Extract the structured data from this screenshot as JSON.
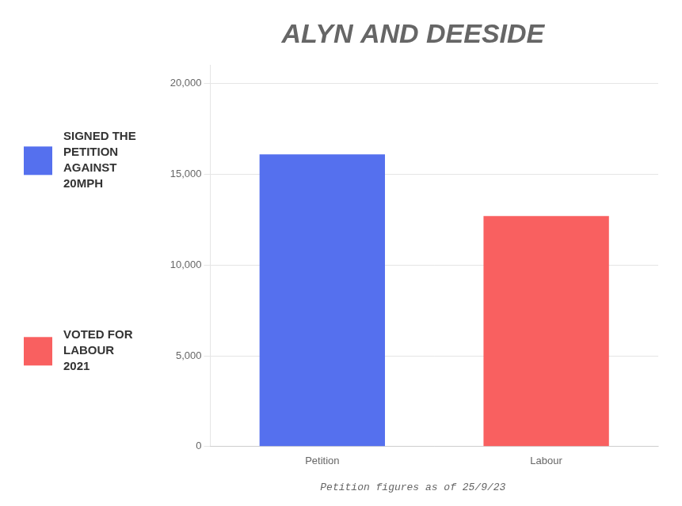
{
  "chart_data": {
    "type": "bar",
    "title": "ALYN AND DEESIDE",
    "categories": [
      "Petition",
      "Labour"
    ],
    "series": [
      {
        "name": "SIGNED THE\nPETITION\nAGAINST\n20MPH",
        "color": "#5570ee",
        "values": [
          16100,
          null
        ]
      },
      {
        "name": "VOTED FOR\nLABOUR\n2021",
        "color": "#f96060",
        "values": [
          null,
          12700
        ]
      }
    ],
    "ylim": [
      0,
      21000
    ],
    "yticks": [
      0,
      {
        "value": 5000,
        "label": "5,000"
      },
      {
        "value": 10000,
        "label": "10,000"
      },
      {
        "value": 15000,
        "label": "15,000"
      },
      {
        "value": 20000,
        "label": "20,000"
      }
    ],
    "grid": true,
    "legend": "left",
    "annotations": [
      "Petition figures as of 25/9/23"
    ]
  }
}
